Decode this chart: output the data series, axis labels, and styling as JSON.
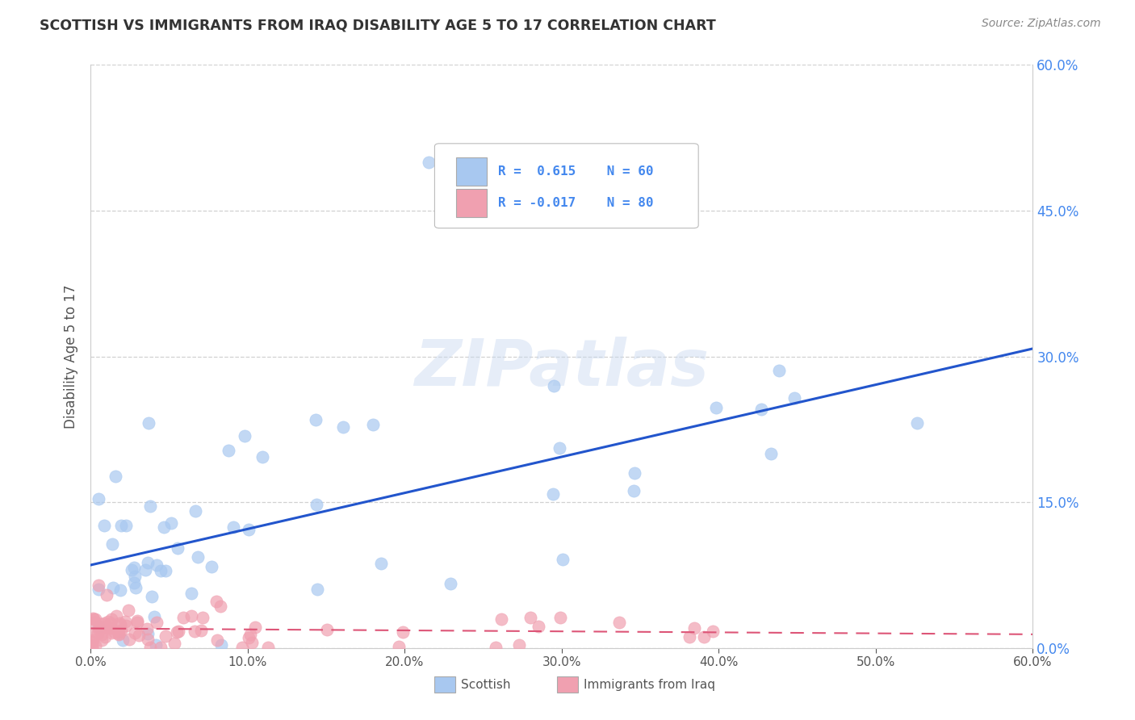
{
  "title": "SCOTTISH VS IMMIGRANTS FROM IRAQ DISABILITY AGE 5 TO 17 CORRELATION CHART",
  "source": "Source: ZipAtlas.com",
  "ylabel": "Disability Age 5 to 17",
  "x_min": 0.0,
  "x_max": 0.6,
  "y_min": 0.0,
  "y_max": 0.6,
  "x_ticks": [
    0.0,
    0.1,
    0.2,
    0.3,
    0.4,
    0.5,
    0.6
  ],
  "x_tick_labels": [
    "0.0%",
    "10.0%",
    "20.0%",
    "30.0%",
    "40.0%",
    "50.0%",
    "60.0%"
  ],
  "y_ticks_right": [
    0.0,
    0.15,
    0.3,
    0.45,
    0.6
  ],
  "y_tick_labels_right": [
    "0.0%",
    "15.0%",
    "30.0%",
    "45.0%",
    "60.0%"
  ],
  "blue_color": "#A8C8F0",
  "pink_color": "#F0A0B0",
  "blue_line_color": "#2255CC",
  "pink_line_color": "#DD5577",
  "blue_r": 0.615,
  "pink_r": -0.017,
  "blue_n": 60,
  "pink_n": 80,
  "watermark": "ZIPatlas",
  "background_color": "#ffffff",
  "grid_color": "#cccccc",
  "title_color": "#333333",
  "axis_label_color": "#555555",
  "right_tick_color": "#4488EE",
  "legend_r1": "R =  0.615",
  "legend_n1": "N = 60",
  "legend_r2": "R = -0.017",
  "legend_n2": "N = 80"
}
